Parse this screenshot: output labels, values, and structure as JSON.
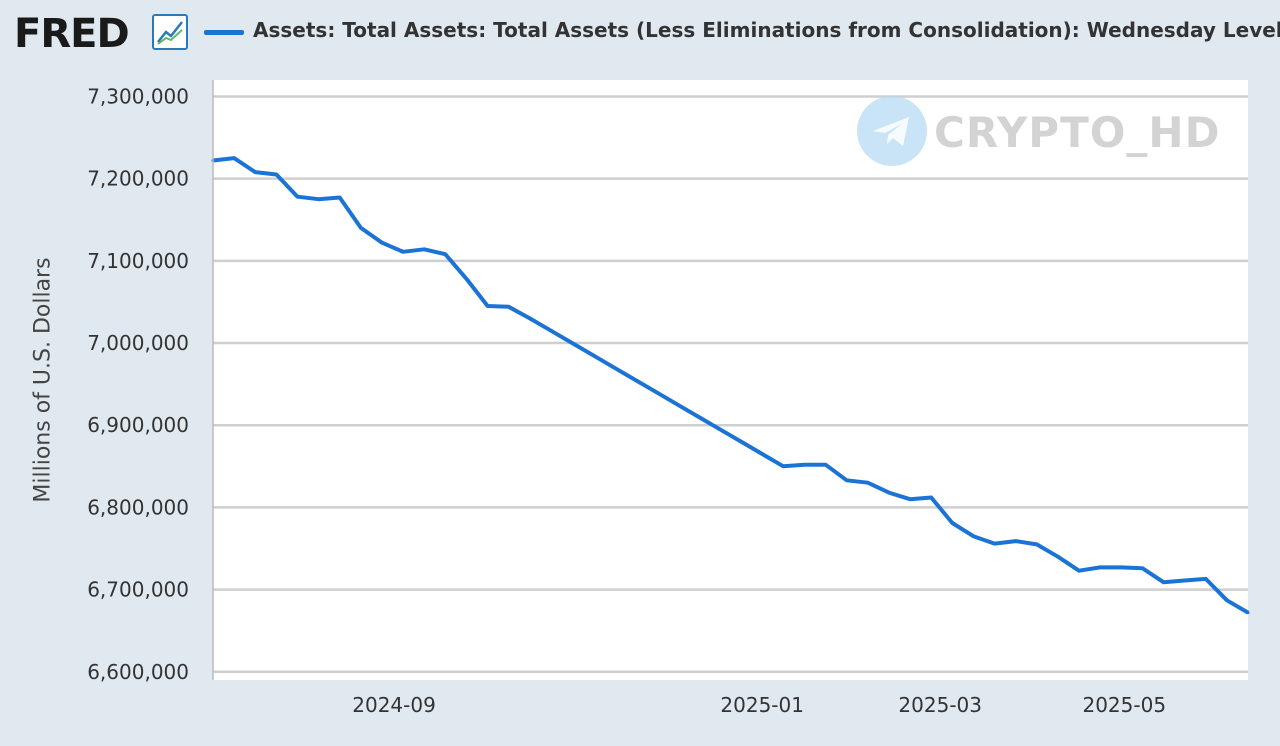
{
  "brand": {
    "logo_text": "FRED",
    "logo_icon": "line-chart-icon"
  },
  "watermark": {
    "text": "CRYPTO_HD",
    "icon": "telegram-icon"
  },
  "chart_data": {
    "type": "line",
    "title": "Assets: Total Assets: Total Assets (Less Eliminations from Consolidation): Wednesday Level",
    "xlabel": "",
    "ylabel": "Millions of U.S. Dollars",
    "ylim": [
      6590000,
      7320000
    ],
    "y_ticks": [
      "7,300,000",
      "7,200,000",
      "7,100,000",
      "7,000,000",
      "6,900,000",
      "6,800,000",
      "6,700,000",
      "6,600,000"
    ],
    "y_tick_values": [
      7300000,
      7200000,
      7100000,
      7000000,
      6900000,
      6800000,
      6700000,
      6600000
    ],
    "x_ticks": [
      "2024-09",
      "2025-01",
      "2025-03",
      "2025-05"
    ],
    "x_tick_values": [
      "2024-09-01",
      "2025-01-01",
      "2025-03-01",
      "2025-05-01"
    ],
    "xlim": [
      "2024-07-03",
      "2025-06-11"
    ],
    "grid": true,
    "legend_position": "top",
    "series": [
      {
        "name": "Assets: Total Assets: Total Assets (Less Eliminations from Consolidation): Wednesday Level",
        "color": "#1b73d6",
        "x": [
          "2024-07-03",
          "2024-07-10",
          "2024-07-17",
          "2024-07-24",
          "2024-07-31",
          "2024-08-07",
          "2024-08-14",
          "2024-08-21",
          "2024-08-28",
          "2024-09-04",
          "2024-09-11",
          "2024-09-18",
          "2024-09-25",
          "2024-10-02",
          "2024-10-09",
          "2024-10-16",
          "2024-10-23",
          "2024-10-30",
          "2024-11-06",
          "2024-11-13",
          "2024-11-20",
          "2024-11-27",
          "2024-12-04",
          "2024-12-11",
          "2024-12-18",
          "2024-12-25",
          "2025-01-01",
          "2025-01-08",
          "2025-01-15",
          "2025-01-22",
          "2025-01-29",
          "2025-02-05",
          "2025-02-12",
          "2025-02-19",
          "2025-02-26",
          "2025-03-05",
          "2025-03-12",
          "2025-03-19",
          "2025-03-26",
          "2025-04-02",
          "2025-04-09",
          "2025-04-16",
          "2025-04-23",
          "2025-04-30",
          "2025-05-07",
          "2025-05-14",
          "2025-05-21",
          "2025-05-28",
          "2025-06-04",
          "2025-06-11"
        ],
        "values": [
          7222000,
          7225000,
          7208000,
          7205000,
          7178000,
          7175000,
          7177000,
          7140000,
          7122000,
          7111000,
          7114000,
          7108000,
          7078000,
          7045000,
          7044000,
          7030000,
          7015000,
          7000000,
          6985000,
          6970000,
          6955000,
          6940000,
          6925000,
          6910000,
          6895000,
          6880000,
          6865000,
          6850000,
          6852000,
          6852000,
          6833000,
          6830000,
          6818000,
          6810000,
          6812000,
          6781000,
          6765000,
          6756000,
          6759000,
          6755000,
          6740000,
          6723000,
          6727000,
          6727000,
          6726000,
          6709000,
          6711000,
          6713000,
          6687000,
          6672000
        ]
      }
    ]
  }
}
